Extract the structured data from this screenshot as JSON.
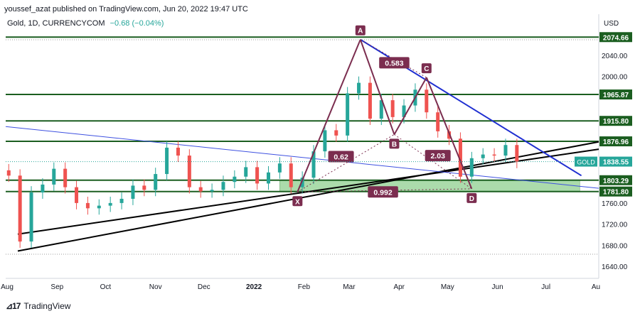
{
  "header": {
    "publish_line": "youssef_azat published on TradingView.com, Jun 20, 2022 19:47 UTC",
    "symbol_info": "Gold, 1D, CURRENCYCOM",
    "change": "−0.68 (−0.04%)"
  },
  "footer": {
    "brand": "TradingView"
  },
  "colors": {
    "up": "#26a69a",
    "down": "#ef5350",
    "level_line": "#1b5e20",
    "harmonic": "#7b2d4f",
    "blue_trend": "#1f2fd1",
    "zone_fill": "#8fcf8f",
    "price_tag": "#26a69a"
  },
  "chart_data": {
    "type": "candlestick",
    "currency": "USD",
    "y_ticks": [
      1640,
      1680,
      1720,
      1760,
      2000,
      2040
    ],
    "x_ticks": [
      {
        "label": "Aug",
        "date": "2021-08-01"
      },
      {
        "label": "Sep",
        "date": "2021-09-01"
      },
      {
        "label": "Oct",
        "date": "2021-10-01"
      },
      {
        "label": "Nov",
        "date": "2021-11-01"
      },
      {
        "label": "Dec",
        "date": "2021-12-01"
      },
      {
        "label": "2022",
        "date": "2022-01-01"
      },
      {
        "label": "Feb",
        "date": "2022-02-01"
      },
      {
        "label": "Mar",
        "date": "2022-03-01"
      },
      {
        "label": "Apr",
        "date": "2022-04-01"
      },
      {
        "label": "May",
        "date": "2022-05-01"
      },
      {
        "label": "Jun",
        "date": "2022-06-01"
      },
      {
        "label": "Jul",
        "date": "2022-07-01"
      },
      {
        "label": "Au",
        "date": "2022-08-01"
      }
    ],
    "levels": [
      {
        "value": 2074.66,
        "label": "2074.66"
      },
      {
        "value": 1965.87,
        "label": "1965.87"
      },
      {
        "value": 1915.8,
        "label": "1915.80"
      },
      {
        "value": 1876.96,
        "label": "1876.96"
      },
      {
        "value": 1803.29,
        "label": "1803.29"
      },
      {
        "value": 1781.8,
        "label": "1781.80"
      }
    ],
    "last_price": {
      "value": 1838.55,
      "label": "1838.55",
      "symbol": "GOLD"
    },
    "pattern_points": [
      {
        "label": "X",
        "date": "2022-01-28",
        "price": 1781
      },
      {
        "label": "A",
        "date": "2022-03-08",
        "price": 2070
      },
      {
        "label": "B",
        "date": "2022-03-29",
        "price": 1890
      },
      {
        "label": "C",
        "date": "2022-04-18",
        "price": 1998
      },
      {
        "label": "D",
        "date": "2022-05-16",
        "price": 1787
      }
    ],
    "ratios": [
      {
        "label": "0.583",
        "date": "2022-03-29",
        "price": 2026
      },
      {
        "label": "0.62",
        "date": "2022-02-24",
        "price": 1848
      },
      {
        "label": "2.03",
        "date": "2022-04-25",
        "price": 1850
      },
      {
        "label": "0.992",
        "date": "2022-03-22",
        "price": 1781
      }
    ],
    "lows": [
      {
        "date": "2021-08-09",
        "price": 1685
      }
    ],
    "candles": [
      {
        "date": "2021-08-02",
        "close": 1812
      },
      {
        "date": "2021-08-09",
        "close": 1687
      },
      {
        "date": "2021-08-16",
        "close": 1780
      },
      {
        "date": "2021-08-23",
        "close": 1795
      },
      {
        "date": "2021-08-30",
        "close": 1825
      },
      {
        "date": "2021-09-06",
        "close": 1790
      },
      {
        "date": "2021-09-13",
        "close": 1760
      },
      {
        "date": "2021-09-20",
        "close": 1750
      },
      {
        "date": "2021-09-27",
        "close": 1755
      },
      {
        "date": "2021-10-04",
        "close": 1760
      },
      {
        "date": "2021-10-11",
        "close": 1768
      },
      {
        "date": "2021-10-18",
        "close": 1793
      },
      {
        "date": "2021-10-25",
        "close": 1785
      },
      {
        "date": "2021-11-01",
        "close": 1815
      },
      {
        "date": "2021-11-08",
        "close": 1865
      },
      {
        "date": "2021-11-15",
        "close": 1850
      },
      {
        "date": "2021-11-22",
        "close": 1790
      },
      {
        "date": "2021-11-29",
        "close": 1782
      },
      {
        "date": "2021-12-06",
        "close": 1785
      },
      {
        "date": "2021-12-13",
        "close": 1800
      },
      {
        "date": "2021-12-20",
        "close": 1810
      },
      {
        "date": "2021-12-27",
        "close": 1828
      },
      {
        "date": "2022-01-03",
        "close": 1797
      },
      {
        "date": "2022-01-10",
        "close": 1818
      },
      {
        "date": "2022-01-17",
        "close": 1835
      },
      {
        "date": "2022-01-24",
        "close": 1790
      },
      {
        "date": "2022-01-31",
        "close": 1808
      },
      {
        "date": "2022-02-07",
        "close": 1858
      },
      {
        "date": "2022-02-14",
        "close": 1898
      },
      {
        "date": "2022-02-21",
        "close": 1888
      },
      {
        "date": "2022-02-28",
        "close": 1968
      },
      {
        "date": "2022-03-07",
        "close": 1988
      },
      {
        "date": "2022-03-14",
        "close": 1920
      },
      {
        "date": "2022-03-21",
        "close": 1955
      },
      {
        "date": "2022-03-28",
        "close": 1923
      },
      {
        "date": "2022-04-04",
        "close": 1945
      },
      {
        "date": "2022-04-11",
        "close": 1975
      },
      {
        "date": "2022-04-18",
        "close": 1932
      },
      {
        "date": "2022-04-25",
        "close": 1896
      },
      {
        "date": "2022-05-02",
        "close": 1882
      },
      {
        "date": "2022-05-09",
        "close": 1810
      },
      {
        "date": "2022-05-16",
        "close": 1845
      },
      {
        "date": "2022-05-23",
        "close": 1852
      },
      {
        "date": "2022-05-30",
        "close": 1850
      },
      {
        "date": "2022-06-06",
        "close": 1870
      },
      {
        "date": "2022-06-13",
        "close": 1838
      }
    ]
  }
}
